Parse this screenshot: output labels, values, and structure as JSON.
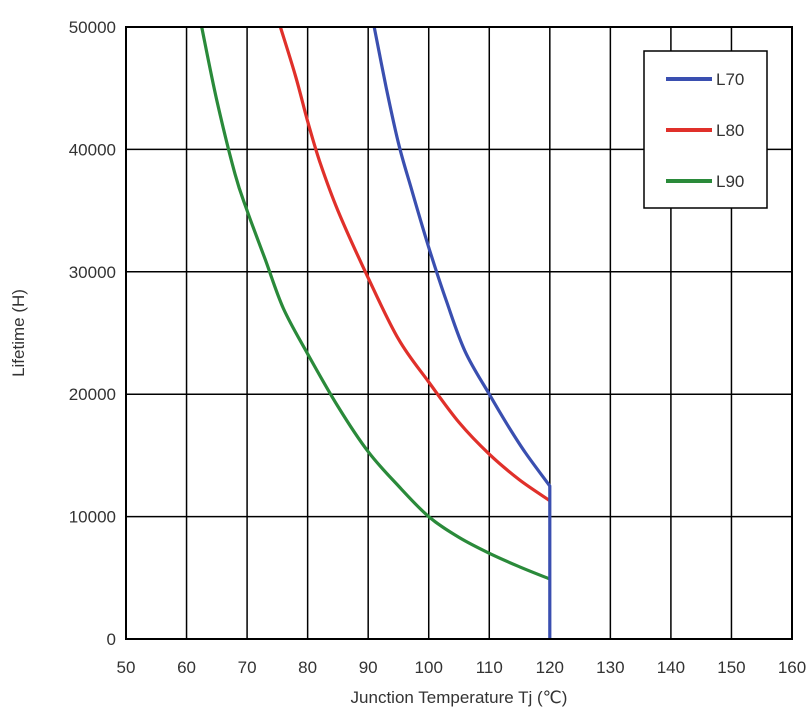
{
  "chart_data": {
    "type": "line",
    "title": "",
    "xlabel": "Junction Temperature Tj (℃)",
    "ylabel": "Lifetime (H)",
    "xlim": [
      50,
      160
    ],
    "ylim": [
      0,
      50000
    ],
    "xticks": [
      50,
      60,
      70,
      80,
      90,
      100,
      110,
      120,
      130,
      140,
      150,
      160
    ],
    "yticks": [
      0,
      10000,
      20000,
      30000,
      40000,
      50000
    ],
    "grid": true,
    "legend_position": "top-right",
    "series": [
      {
        "name": "L70",
        "color": "#3a4fb0",
        "x": [
          91,
          93,
          95,
          97,
          100,
          103,
          106,
          110,
          113,
          116,
          120,
          120
        ],
        "y": [
          50000,
          45000,
          40500,
          37000,
          32000,
          27500,
          23500,
          20000,
          17500,
          15200,
          12500,
          0
        ]
      },
      {
        "name": "L80",
        "color": "#e0302a",
        "x": [
          75.5,
          78,
          80,
          82,
          85,
          90,
          95,
          100,
          105,
          110,
          115,
          120
        ],
        "y": [
          50000,
          46000,
          42300,
          39000,
          35000,
          29500,
          24500,
          21000,
          17700,
          15100,
          13000,
          11300
        ]
      },
      {
        "name": "L90",
        "color": "#2a8a3a",
        "x": [
          62.5,
          65,
          68,
          70,
          73,
          76,
          80,
          85,
          90,
          95,
          100,
          105,
          110,
          115,
          120
        ],
        "y": [
          50000,
          44000,
          38000,
          35000,
          31000,
          27000,
          23300,
          19000,
          15300,
          12500,
          10000,
          8300,
          7000,
          5900,
          4900
        ]
      }
    ]
  }
}
